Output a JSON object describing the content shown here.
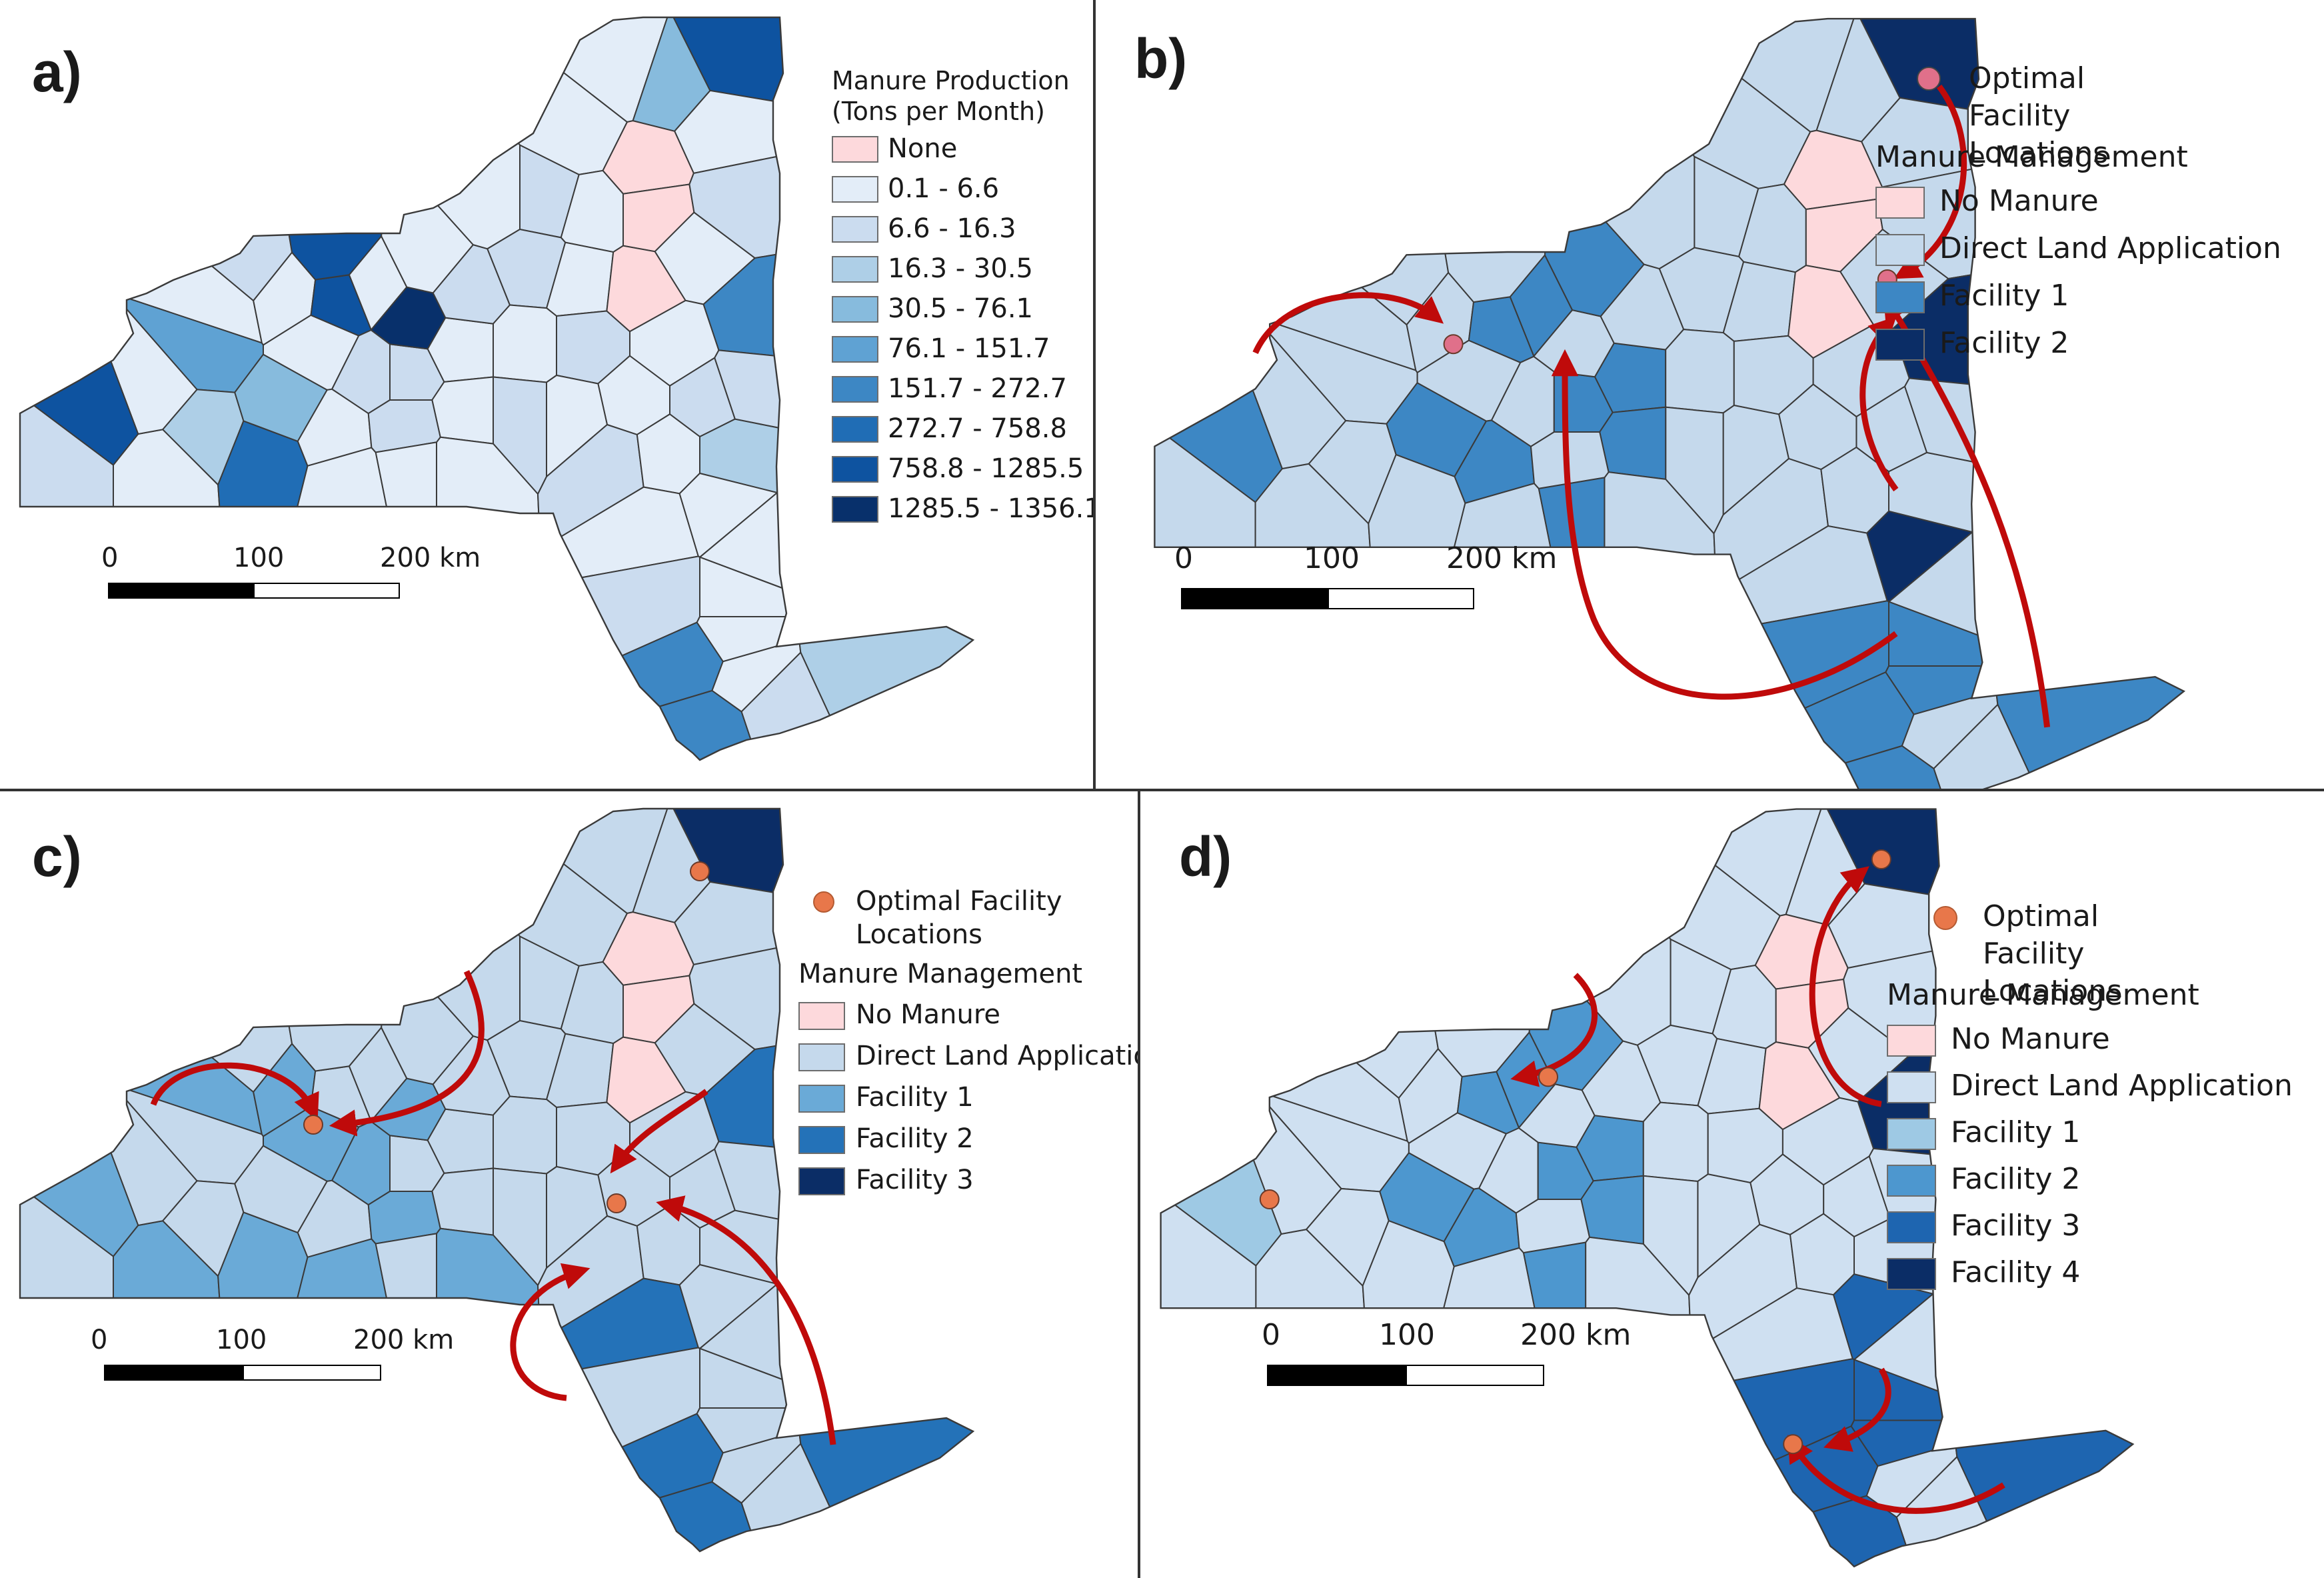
{
  "panels": {
    "a": {
      "label": "a)",
      "legend_title_line1": "Manure Production",
      "legend_title_line2": "(Tons per Month)",
      "legend_items": [
        {
          "label": "None",
          "color": "#fdd9dc"
        },
        {
          "label": "0.1 - 6.6",
          "color": "#e3edf8"
        },
        {
          "label": "6.6 - 16.3",
          "color": "#cbdcef"
        },
        {
          "label": "16.3 - 30.5",
          "color": "#aecfe7"
        },
        {
          "label": "30.5 - 76.1",
          "color": "#87bbdd"
        },
        {
          "label": "76.1 - 151.7",
          "color": "#5fa2d3"
        },
        {
          "label": "151.7 - 272.7",
          "color": "#3d87c4"
        },
        {
          "label": "272.7 - 758.8",
          "color": "#206db5"
        },
        {
          "label": "758.8 - 1285.5",
          "color": "#0e53a0"
        },
        {
          "label": "1285.5 - 1356.1",
          "color": "#08306b"
        }
      ]
    },
    "b": {
      "label": "b)",
      "facility_line1": "Optimal Facility",
      "facility_line2": "Locations",
      "facility_color": "#e0708a",
      "mgmt_title": "Manure Management",
      "legend_items": [
        {
          "label": "No Manure",
          "color": "#fdd9dc"
        },
        {
          "label": "Direct Land Application",
          "color": "#c5d9ec"
        },
        {
          "label": "Facility 1",
          "color": "#3d87c4"
        },
        {
          "label": "Facility 2",
          "color": "#0b2d66"
        }
      ]
    },
    "c": {
      "label": "c)",
      "facility_line1": "Optimal Facility",
      "facility_line2": "Locations",
      "facility_color": "#e8774a",
      "mgmt_title": "Manure Management",
      "legend_items": [
        {
          "label": "No Manure",
          "color": "#fdd9dc"
        },
        {
          "label": "Direct Land Application",
          "color": "#c5d9ec"
        },
        {
          "label": "Facility 1",
          "color": "#6aaad7"
        },
        {
          "label": "Facility 2",
          "color": "#2472b8"
        },
        {
          "label": "Facility 3",
          "color": "#0b2d66"
        }
      ]
    },
    "d": {
      "label": "d)",
      "facility_line1": "Optimal Facility",
      "facility_line2": "Locations",
      "facility_color": "#e8774a",
      "mgmt_title": "Manure Management",
      "legend_items": [
        {
          "label": "No Manure",
          "color": "#fdd9dc"
        },
        {
          "label": "Direct Land Application",
          "color": "#cfe0f1"
        },
        {
          "label": "Facility 1",
          "color": "#9ec9e4"
        },
        {
          "label": "Facility 2",
          "color": "#4d97cf"
        },
        {
          "label": "Facility 3",
          "color": "#1e65b0"
        },
        {
          "label": "Facility 4",
          "color": "#0b2d66"
        }
      ]
    }
  },
  "scale": {
    "tick0": "0",
    "tick1": "100",
    "tick2": "200 km"
  },
  "colors": {
    "arrow": "#bf0a0a",
    "border": "#3a3a3a"
  }
}
